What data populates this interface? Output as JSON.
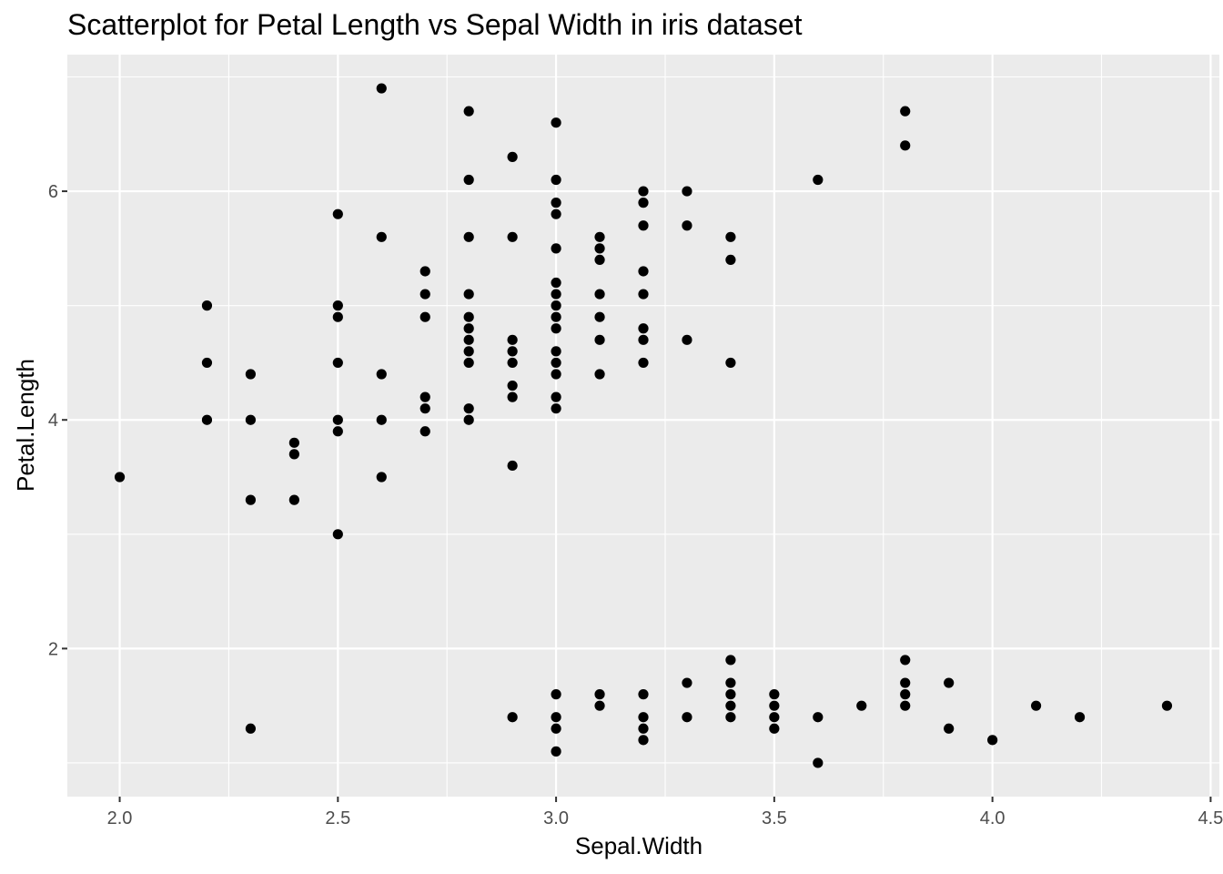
{
  "chart_data": {
    "type": "scatter",
    "title": "Scatterplot for Petal Length vs Sepal Width in iris dataset",
    "xlabel": "Sepal.Width",
    "ylabel": "Petal.Length",
    "xlim": [
      1.88,
      4.52
    ],
    "ylim": [
      0.705,
      7.195
    ],
    "x_ticks": [
      2.0,
      2.5,
      3.0,
      3.5,
      4.0,
      4.5
    ],
    "x_tick_labels": [
      "2.0",
      "2.5",
      "3.0",
      "3.5",
      "4.0",
      "4.5"
    ],
    "y_ticks": [
      2,
      4,
      6
    ],
    "y_tick_labels": [
      "2",
      "4",
      "6"
    ],
    "grid": true,
    "colors": {
      "panel": "#ebebeb",
      "grid": "#ffffff",
      "point": "#000000"
    },
    "points": [
      [
        2.0,
        3.5
      ],
      [
        2.2,
        5.0
      ],
      [
        2.2,
        4.5
      ],
      [
        2.2,
        4.0
      ],
      [
        2.3,
        4.4
      ],
      [
        2.3,
        4.0
      ],
      [
        2.3,
        3.3
      ],
      [
        2.3,
        1.3
      ],
      [
        2.4,
        3.8
      ],
      [
        2.4,
        3.7
      ],
      [
        2.4,
        3.3
      ],
      [
        2.5,
        5.8
      ],
      [
        2.5,
        5.0
      ],
      [
        2.5,
        4.9
      ],
      [
        2.5,
        4.5
      ],
      [
        2.5,
        4.0
      ],
      [
        2.5,
        3.9
      ],
      [
        2.5,
        3.0
      ],
      [
        2.6,
        6.9
      ],
      [
        2.6,
        5.6
      ],
      [
        2.6,
        4.4
      ],
      [
        2.6,
        4.0
      ],
      [
        2.6,
        3.5
      ],
      [
        2.7,
        5.3
      ],
      [
        2.7,
        5.1
      ],
      [
        2.7,
        4.9
      ],
      [
        2.7,
        4.2
      ],
      [
        2.7,
        4.1
      ],
      [
        2.7,
        3.9
      ],
      [
        2.8,
        6.7
      ],
      [
        2.8,
        6.1
      ],
      [
        2.8,
        5.6
      ],
      [
        2.8,
        5.1
      ],
      [
        2.8,
        4.9
      ],
      [
        2.8,
        4.8
      ],
      [
        2.8,
        4.7
      ],
      [
        2.8,
        4.6
      ],
      [
        2.8,
        4.5
      ],
      [
        2.8,
        4.1
      ],
      [
        2.8,
        4.0
      ],
      [
        2.9,
        6.3
      ],
      [
        2.9,
        5.6
      ],
      [
        2.9,
        4.7
      ],
      [
        2.9,
        4.6
      ],
      [
        2.9,
        4.5
      ],
      [
        2.9,
        4.3
      ],
      [
        2.9,
        4.2
      ],
      [
        2.9,
        3.6
      ],
      [
        2.9,
        1.4
      ],
      [
        3.0,
        6.6
      ],
      [
        3.0,
        6.1
      ],
      [
        3.0,
        5.9
      ],
      [
        3.0,
        5.8
      ],
      [
        3.0,
        5.5
      ],
      [
        3.0,
        5.2
      ],
      [
        3.0,
        5.1
      ],
      [
        3.0,
        5.0
      ],
      [
        3.0,
        4.9
      ],
      [
        3.0,
        4.8
      ],
      [
        3.0,
        4.6
      ],
      [
        3.0,
        4.5
      ],
      [
        3.0,
        4.4
      ],
      [
        3.0,
        4.2
      ],
      [
        3.0,
        4.1
      ],
      [
        3.0,
        1.6
      ],
      [
        3.0,
        1.4
      ],
      [
        3.0,
        1.3
      ],
      [
        3.0,
        1.1
      ],
      [
        3.1,
        5.6
      ],
      [
        3.1,
        5.5
      ],
      [
        3.1,
        5.4
      ],
      [
        3.1,
        5.1
      ],
      [
        3.1,
        4.9
      ],
      [
        3.1,
        4.7
      ],
      [
        3.1,
        4.4
      ],
      [
        3.1,
        1.6
      ],
      [
        3.1,
        1.5
      ],
      [
        3.2,
        6.0
      ],
      [
        3.2,
        5.9
      ],
      [
        3.2,
        5.7
      ],
      [
        3.2,
        5.3
      ],
      [
        3.2,
        5.1
      ],
      [
        3.2,
        4.8
      ],
      [
        3.2,
        4.7
      ],
      [
        3.2,
        4.5
      ],
      [
        3.2,
        1.6
      ],
      [
        3.2,
        1.4
      ],
      [
        3.2,
        1.3
      ],
      [
        3.2,
        1.2
      ],
      [
        3.3,
        6.0
      ],
      [
        3.3,
        5.7
      ],
      [
        3.3,
        4.7
      ],
      [
        3.3,
        1.7
      ],
      [
        3.3,
        1.4
      ],
      [
        3.4,
        5.6
      ],
      [
        3.4,
        5.4
      ],
      [
        3.4,
        4.5
      ],
      [
        3.4,
        1.9
      ],
      [
        3.4,
        1.7
      ],
      [
        3.4,
        1.6
      ],
      [
        3.4,
        1.5
      ],
      [
        3.4,
        1.4
      ],
      [
        3.5,
        1.6
      ],
      [
        3.5,
        1.5
      ],
      [
        3.5,
        1.4
      ],
      [
        3.5,
        1.3
      ],
      [
        3.6,
        6.1
      ],
      [
        3.6,
        1.4
      ],
      [
        3.6,
        1.0
      ],
      [
        3.7,
        1.5
      ],
      [
        3.8,
        6.7
      ],
      [
        3.8,
        6.4
      ],
      [
        3.8,
        1.9
      ],
      [
        3.8,
        1.7
      ],
      [
        3.8,
        1.6
      ],
      [
        3.8,
        1.5
      ],
      [
        3.9,
        1.7
      ],
      [
        3.9,
        1.3
      ],
      [
        4.0,
        1.2
      ],
      [
        4.1,
        1.5
      ],
      [
        4.2,
        1.4
      ],
      [
        4.4,
        1.5
      ]
    ]
  }
}
